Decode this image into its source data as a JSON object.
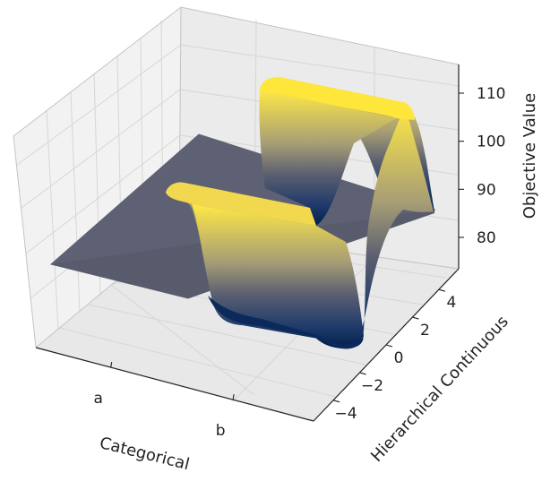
{
  "chart_data": {
    "type": "surface",
    "xlabel": "Categorical",
    "ylabel": "Hierarchical Continuous",
    "zlabel": "Objective Value",
    "x_categories": [
      "a",
      "b"
    ],
    "y_ticks": [
      -4,
      -2,
      0,
      2,
      4
    ],
    "y_tick_labels": [
      "−4",
      "−2",
      "0",
      "2",
      "4"
    ],
    "z_ticks": [
      80,
      90,
      100,
      110
    ],
    "z_tick_labels": [
      "80",
      "90",
      "100",
      "110"
    ],
    "zlim": [
      70,
      117
    ],
    "colormap": "cividis",
    "colormap_colors": [
      "#00204c",
      "#5c6070",
      "#ffe945"
    ],
    "surfaces": [
      {
        "category": "a",
        "description_values": {
          "flat_value": 90,
          "curve_y": [
            -5,
            -4,
            -3,
            -2,
            -1,
            0,
            1,
            2,
            3,
            4,
            5
          ],
          "curve_z": [
            90,
            90,
            90,
            90,
            90,
            90,
            90,
            90,
            90,
            90,
            90
          ]
        }
      },
      {
        "category": "b",
        "description_values": {
          "curve_y": [
            -5,
            -4,
            -3,
            -2,
            -1,
            0,
            1,
            2,
            3,
            4,
            5
          ],
          "curve_z": [
            89,
            112,
            112,
            112,
            100,
            68,
            78,
            104,
            112,
            112,
            90
          ]
        }
      }
    ],
    "grid": true
  }
}
